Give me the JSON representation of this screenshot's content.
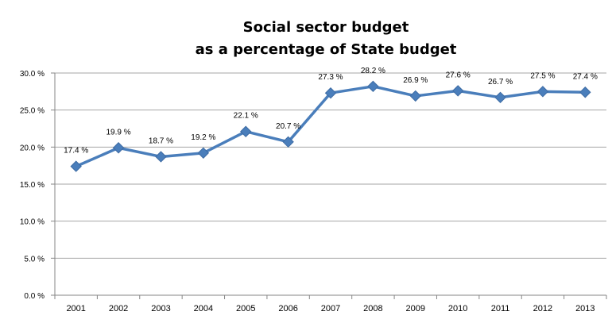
{
  "chart_data": {
    "type": "line",
    "title": "Social sector budget",
    "subtitle": "as a percentage of State budget",
    "categories": [
      "2001",
      "2002",
      "2003",
      "2004",
      "2005",
      "2006",
      "2007",
      "2008",
      "2009",
      "2010",
      "2011",
      "2012",
      "2013"
    ],
    "series": [
      {
        "values": [
          17.4,
          19.9,
          18.7,
          19.2,
          22.1,
          20.7,
          27.3,
          28.2,
          26.9,
          27.6,
          26.7,
          27.5,
          27.4
        ]
      }
    ],
    "data_labels": [
      "17.4 %",
      "19.9 %",
      "18.7 %",
      "19.2 %",
      "22.1 %",
      "20.7 %",
      "27.3 %",
      "28.2 %",
      "26.9 %",
      "27.6 %",
      "26.7 %",
      "27.5 %",
      "27.4 %"
    ],
    "y_ticks": [
      "0.0 %",
      "5.0 %",
      "10.0 %",
      "15.0 %",
      "20.0 %",
      "25.0 %",
      "30.0 %"
    ],
    "ylim": [
      0,
      30
    ],
    "grid": true,
    "legend": "none",
    "colors": {
      "line": "#4a7ebb",
      "marker": "#4a7ebb",
      "grid": "#a6a6a6",
      "axis": "#868686"
    }
  }
}
